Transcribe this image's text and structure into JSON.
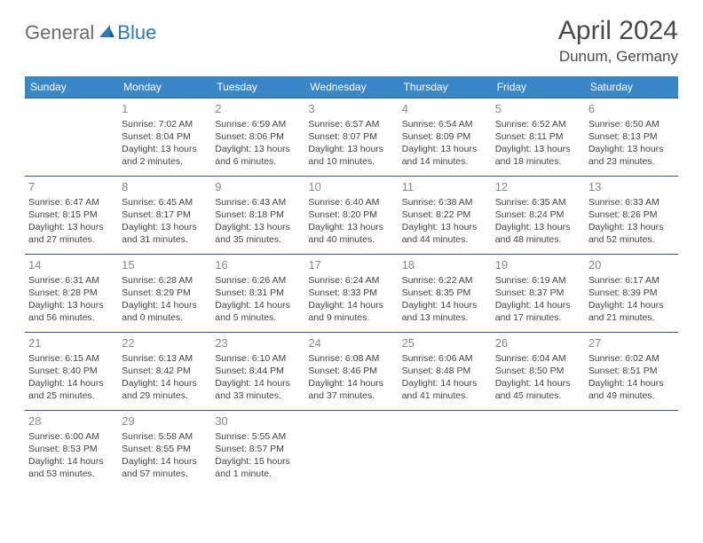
{
  "brand": {
    "part1": "General",
    "part2": "Blue"
  },
  "title": "April 2024",
  "location": "Dunum, Germany",
  "colors": {
    "header_bg": "#3a87c8",
    "header_text": "#ffffff",
    "cell_border": "#2e5b86",
    "daynum": "#888888",
    "body_text": "#444444",
    "brand_gray": "#6b6b6b",
    "brand_blue": "#2e77b8"
  },
  "weekdays": [
    "Sunday",
    "Monday",
    "Tuesday",
    "Wednesday",
    "Thursday",
    "Friday",
    "Saturday"
  ],
  "weeks": [
    [
      null,
      {
        "n": "1",
        "sr": "7:02 AM",
        "ss": "8:04 PM",
        "dl": "13 hours and 2 minutes."
      },
      {
        "n": "2",
        "sr": "6:59 AM",
        "ss": "8:06 PM",
        "dl": "13 hours and 6 minutes."
      },
      {
        "n": "3",
        "sr": "6:57 AM",
        "ss": "8:07 PM",
        "dl": "13 hours and 10 minutes."
      },
      {
        "n": "4",
        "sr": "6:54 AM",
        "ss": "8:09 PM",
        "dl": "13 hours and 14 minutes."
      },
      {
        "n": "5",
        "sr": "6:52 AM",
        "ss": "8:11 PM",
        "dl": "13 hours and 18 minutes."
      },
      {
        "n": "6",
        "sr": "6:50 AM",
        "ss": "8:13 PM",
        "dl": "13 hours and 23 minutes."
      }
    ],
    [
      {
        "n": "7",
        "sr": "6:47 AM",
        "ss": "8:15 PM",
        "dl": "13 hours and 27 minutes."
      },
      {
        "n": "8",
        "sr": "6:45 AM",
        "ss": "8:17 PM",
        "dl": "13 hours and 31 minutes."
      },
      {
        "n": "9",
        "sr": "6:43 AM",
        "ss": "8:18 PM",
        "dl": "13 hours and 35 minutes."
      },
      {
        "n": "10",
        "sr": "6:40 AM",
        "ss": "8:20 PM",
        "dl": "13 hours and 40 minutes."
      },
      {
        "n": "11",
        "sr": "6:38 AM",
        "ss": "8:22 PM",
        "dl": "13 hours and 44 minutes."
      },
      {
        "n": "12",
        "sr": "6:35 AM",
        "ss": "8:24 PM",
        "dl": "13 hours and 48 minutes."
      },
      {
        "n": "13",
        "sr": "6:33 AM",
        "ss": "8:26 PM",
        "dl": "13 hours and 52 minutes."
      }
    ],
    [
      {
        "n": "14",
        "sr": "6:31 AM",
        "ss": "8:28 PM",
        "dl": "13 hours and 56 minutes."
      },
      {
        "n": "15",
        "sr": "6:28 AM",
        "ss": "8:29 PM",
        "dl": "14 hours and 0 minutes."
      },
      {
        "n": "16",
        "sr": "6:26 AM",
        "ss": "8:31 PM",
        "dl": "14 hours and 5 minutes."
      },
      {
        "n": "17",
        "sr": "6:24 AM",
        "ss": "8:33 PM",
        "dl": "14 hours and 9 minutes."
      },
      {
        "n": "18",
        "sr": "6:22 AM",
        "ss": "8:35 PM",
        "dl": "14 hours and 13 minutes."
      },
      {
        "n": "19",
        "sr": "6:19 AM",
        "ss": "8:37 PM",
        "dl": "14 hours and 17 minutes."
      },
      {
        "n": "20",
        "sr": "6:17 AM",
        "ss": "8:39 PM",
        "dl": "14 hours and 21 minutes."
      }
    ],
    [
      {
        "n": "21",
        "sr": "6:15 AM",
        "ss": "8:40 PM",
        "dl": "14 hours and 25 minutes."
      },
      {
        "n": "22",
        "sr": "6:13 AM",
        "ss": "8:42 PM",
        "dl": "14 hours and 29 minutes."
      },
      {
        "n": "23",
        "sr": "6:10 AM",
        "ss": "8:44 PM",
        "dl": "14 hours and 33 minutes."
      },
      {
        "n": "24",
        "sr": "6:08 AM",
        "ss": "8:46 PM",
        "dl": "14 hours and 37 minutes."
      },
      {
        "n": "25",
        "sr": "6:06 AM",
        "ss": "8:48 PM",
        "dl": "14 hours and 41 minutes."
      },
      {
        "n": "26",
        "sr": "6:04 AM",
        "ss": "8:50 PM",
        "dl": "14 hours and 45 minutes."
      },
      {
        "n": "27",
        "sr": "6:02 AM",
        "ss": "8:51 PM",
        "dl": "14 hours and 49 minutes."
      }
    ],
    [
      {
        "n": "28",
        "sr": "6:00 AM",
        "ss": "8:53 PM",
        "dl": "14 hours and 53 minutes."
      },
      {
        "n": "29",
        "sr": "5:58 AM",
        "ss": "8:55 PM",
        "dl": "14 hours and 57 minutes."
      },
      {
        "n": "30",
        "sr": "5:55 AM",
        "ss": "8:57 PM",
        "dl": "15 hours and 1 minute."
      },
      null,
      null,
      null,
      null
    ]
  ],
  "labels": {
    "sunrise": "Sunrise:",
    "sunset": "Sunset:",
    "daylight": "Daylight:"
  }
}
